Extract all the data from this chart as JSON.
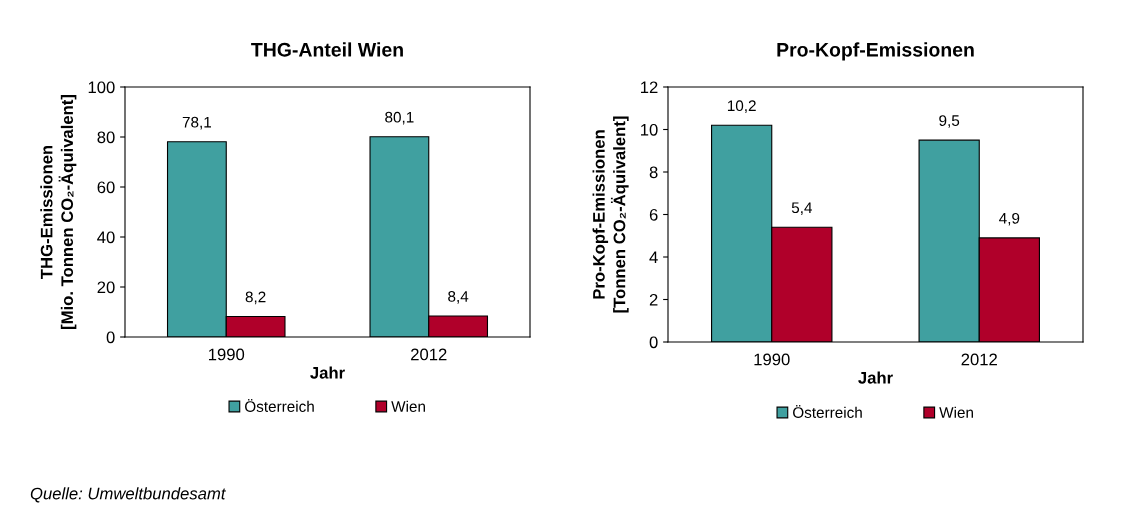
{
  "chart_data": [
    {
      "type": "bar",
      "title": "THG-Anteil Wien",
      "xlabel": "Jahr",
      "ylabel": "THG-Emissionen\n[Mio. Tonnen CO₂-Äquivalent]",
      "categories": [
        "1990",
        "2012"
      ],
      "series": [
        {
          "name": "Österreich",
          "color": "#40a0a0",
          "values": [
            78.1,
            80.1
          ],
          "value_labels": [
            "78,1",
            "80,1"
          ]
        },
        {
          "name": "Wien",
          "color": "#b0002a",
          "values": [
            8.2,
            8.4
          ],
          "value_labels": [
            "8,2",
            "8,4"
          ]
        }
      ],
      "ylim": [
        0,
        100
      ],
      "yticks": [
        0,
        20,
        40,
        60,
        80,
        100
      ],
      "grid": false,
      "legend": "bottom"
    },
    {
      "type": "bar",
      "title": "Pro-Kopf-Emissionen",
      "xlabel": "Jahr",
      "ylabel": "Pro-Kopf-Emissionen\n[Tonnen CO₂-Äquivalent]",
      "categories": [
        "1990",
        "2012"
      ],
      "series": [
        {
          "name": "Österreich",
          "color": "#40a0a0",
          "values": [
            10.2,
            9.5
          ],
          "value_labels": [
            "10,2",
            "9,5"
          ]
        },
        {
          "name": "Wien",
          "color": "#b0002a",
          "values": [
            5.4,
            4.9
          ],
          "value_labels": [
            "5,4",
            "4,9"
          ]
        }
      ],
      "ylim": [
        0,
        12
      ],
      "yticks": [
        0,
        2,
        4,
        6,
        8,
        10,
        12
      ],
      "grid": false,
      "legend": "bottom",
      "annotations": [
        "Quelle: Umweltbundesamt"
      ]
    }
  ]
}
